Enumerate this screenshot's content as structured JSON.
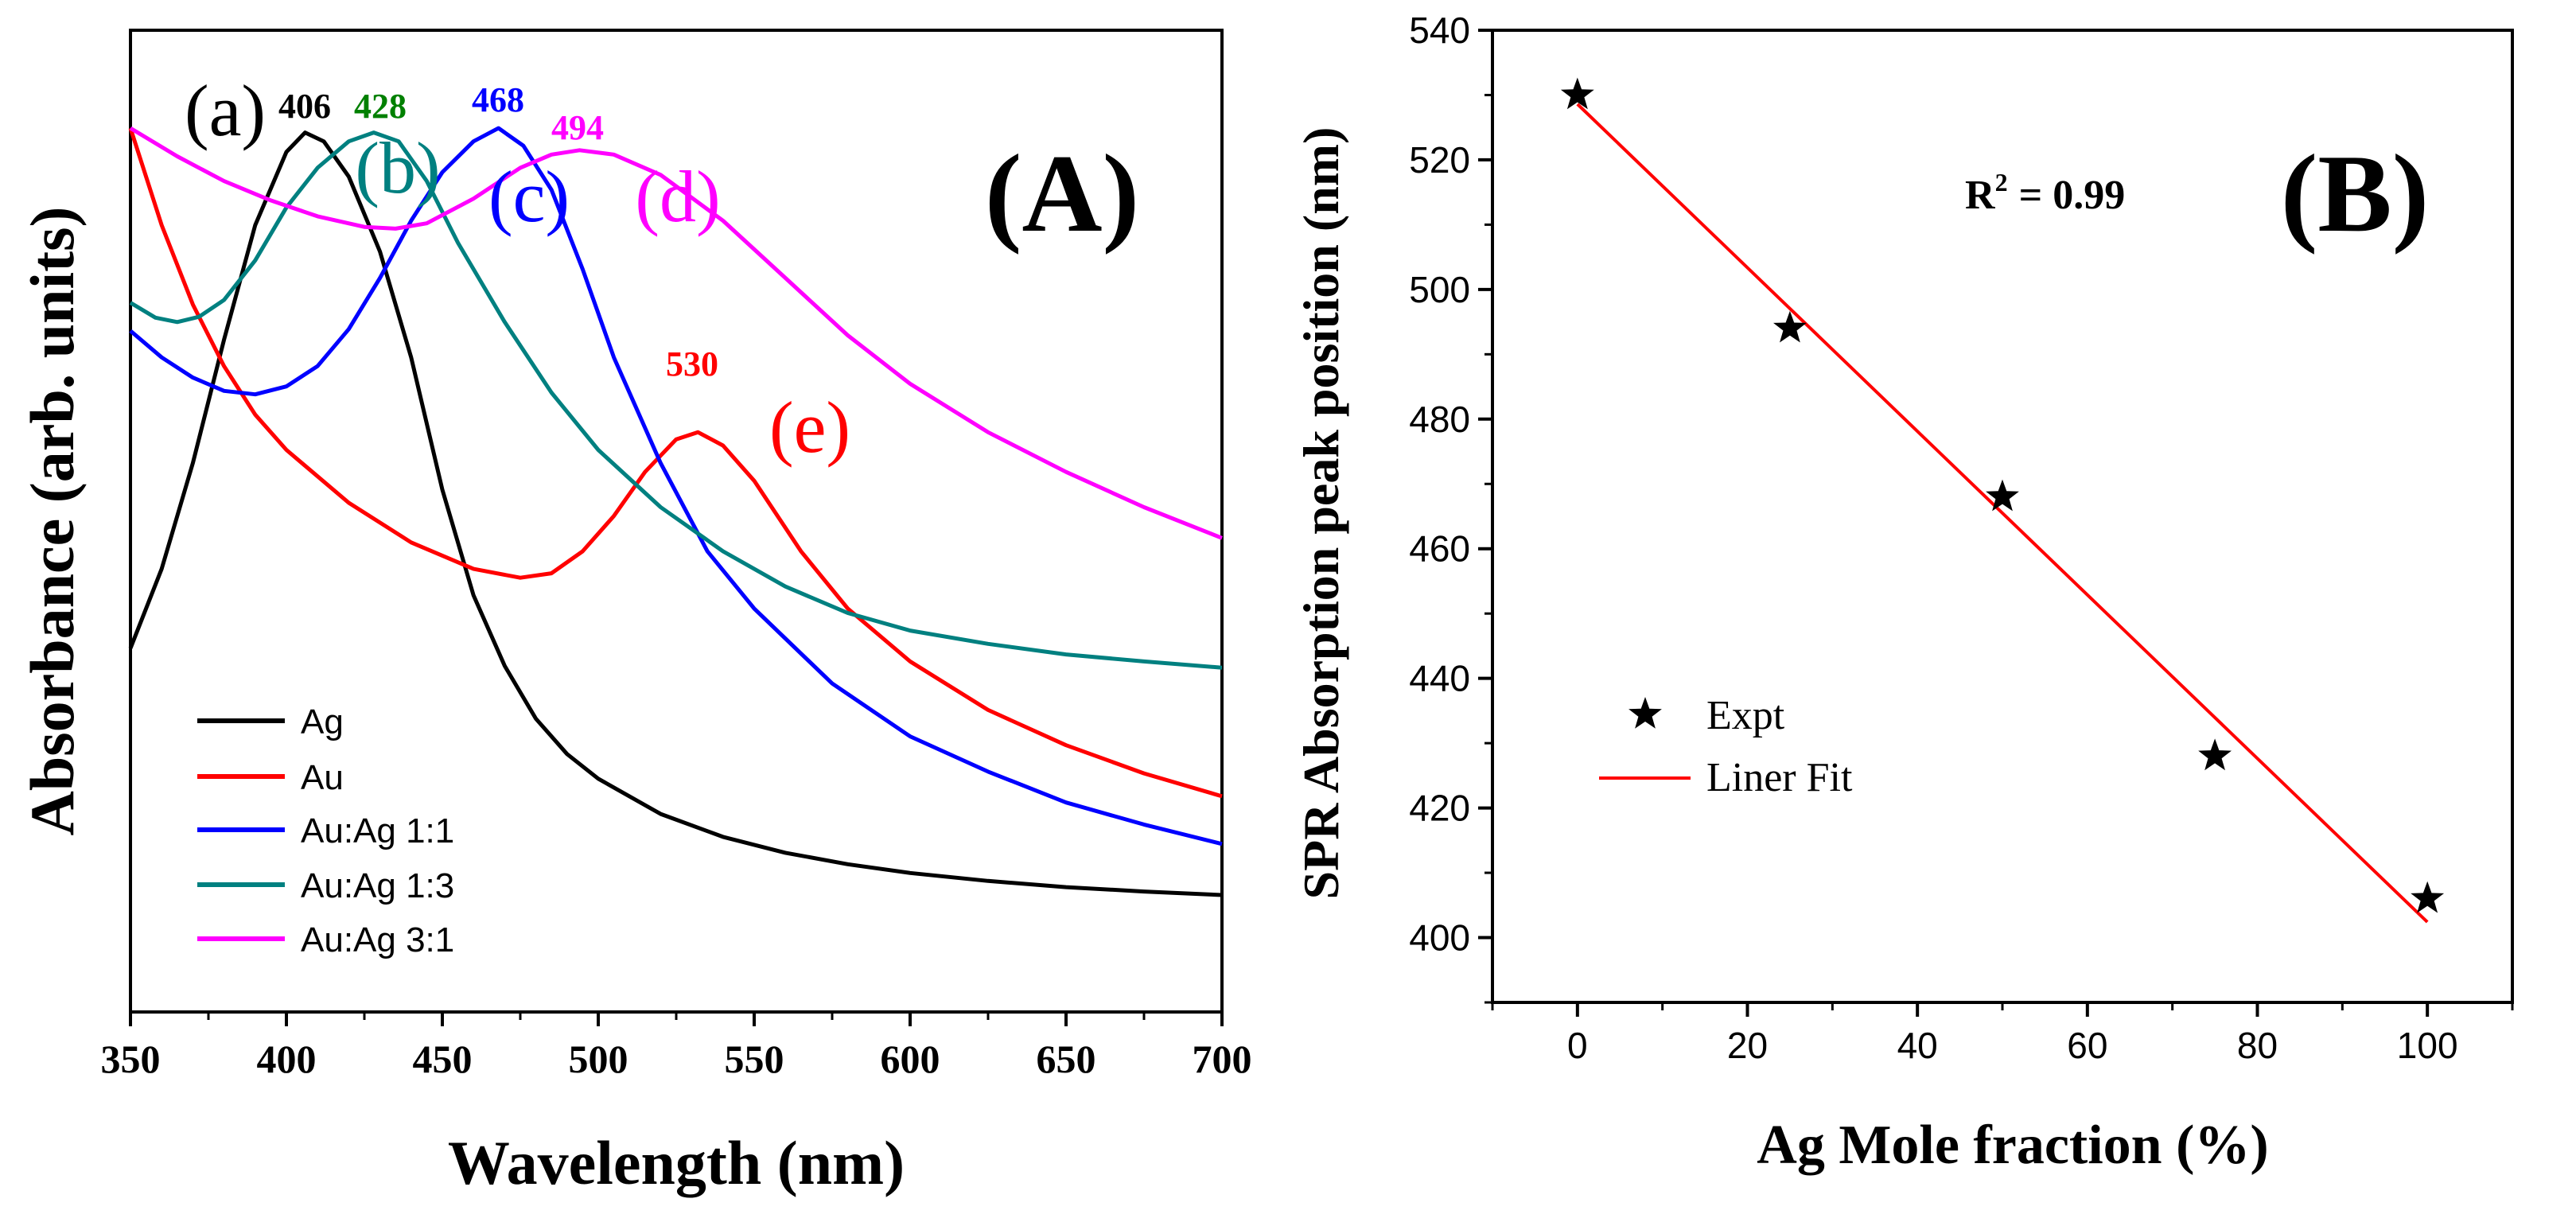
{
  "chart_data": [
    {
      "id": "A",
      "type": "line",
      "panel_label": "(A)",
      "xlabel": "Wavelength (nm)",
      "ylabel": "Absorbance (arb. units)",
      "xlim": [
        350,
        700
      ],
      "ylim": [
        0,
        1
      ],
      "x_ticks": [
        350,
        400,
        450,
        500,
        550,
        600,
        650,
        700
      ],
      "series": [
        {
          "name": "Ag",
          "color": "#000000",
          "curve_label": "(a)",
          "peak_label": "406",
          "peak_x": 406,
          "points": [
            [
              350,
              0.4
            ],
            [
              360,
              0.49
            ],
            [
              370,
              0.61
            ],
            [
              380,
              0.75
            ],
            [
              390,
              0.88
            ],
            [
              400,
              0.963
            ],
            [
              406,
              0.985
            ],
            [
              412,
              0.975
            ],
            [
              420,
              0.935
            ],
            [
              430,
              0.85
            ],
            [
              440,
              0.73
            ],
            [
              450,
              0.58
            ],
            [
              460,
              0.46
            ],
            [
              470,
              0.38
            ],
            [
              480,
              0.32
            ],
            [
              490,
              0.28
            ],
            [
              500,
              0.252
            ],
            [
              520,
              0.212
            ],
            [
              540,
              0.186
            ],
            [
              560,
              0.168
            ],
            [
              580,
              0.155
            ],
            [
              600,
              0.145
            ],
            [
              625,
              0.136
            ],
            [
              650,
              0.129
            ],
            [
              675,
              0.124
            ],
            [
              700,
              0.12
            ]
          ]
        },
        {
          "name": "Au",
          "color": "#ff0000",
          "curve_label": "(e)",
          "peak_label": "530",
          "peak_x": 530,
          "points": [
            [
              350,
              0.99
            ],
            [
              360,
              0.88
            ],
            [
              370,
              0.79
            ],
            [
              380,
              0.72
            ],
            [
              390,
              0.665
            ],
            [
              400,
              0.625
            ],
            [
              420,
              0.565
            ],
            [
              440,
              0.52
            ],
            [
              460,
              0.49
            ],
            [
              475,
              0.48
            ],
            [
              485,
              0.485
            ],
            [
              495,
              0.51
            ],
            [
              505,
              0.55
            ],
            [
              515,
              0.6
            ],
            [
              525,
              0.637
            ],
            [
              532,
              0.645
            ],
            [
              540,
              0.63
            ],
            [
              550,
              0.59
            ],
            [
              565,
              0.51
            ],
            [
              580,
              0.445
            ],
            [
              600,
              0.385
            ],
            [
              625,
              0.33
            ],
            [
              650,
              0.29
            ],
            [
              675,
              0.258
            ],
            [
              700,
              0.232
            ]
          ]
        },
        {
          "name": "Au:Ag 1:1",
          "color": "#0000ff",
          "curve_label": "(c)",
          "peak_label": "468",
          "peak_x": 468,
          "points": [
            [
              350,
              0.76
            ],
            [
              360,
              0.73
            ],
            [
              370,
              0.707
            ],
            [
              380,
              0.692
            ],
            [
              390,
              0.688
            ],
            [
              400,
              0.697
            ],
            [
              410,
              0.72
            ],
            [
              420,
              0.762
            ],
            [
              430,
              0.82
            ],
            [
              440,
              0.885
            ],
            [
              450,
              0.94
            ],
            [
              460,
              0.975
            ],
            [
              468,
              0.99
            ],
            [
              476,
              0.97
            ],
            [
              485,
              0.92
            ],
            [
              495,
              0.83
            ],
            [
              505,
              0.73
            ],
            [
              520,
              0.61
            ],
            [
              535,
              0.51
            ],
            [
              550,
              0.445
            ],
            [
              575,
              0.36
            ],
            [
              600,
              0.3
            ],
            [
              625,
              0.26
            ],
            [
              650,
              0.225
            ],
            [
              675,
              0.2
            ],
            [
              700,
              0.178
            ]
          ]
        },
        {
          "name": "Au:Ag 1:3",
          "color": "#008080",
          "curve_label": "(b)",
          "peak_label": "428",
          "peak_x": 428,
          "points": [
            [
              350,
              0.792
            ],
            [
              358,
              0.775
            ],
            [
              365,
              0.77
            ],
            [
              372,
              0.776
            ],
            [
              380,
              0.795
            ],
            [
              390,
              0.84
            ],
            [
              400,
              0.9
            ],
            [
              410,
              0.945
            ],
            [
              420,
              0.975
            ],
            [
              428,
              0.985
            ],
            [
              436,
              0.975
            ],
            [
              445,
              0.93
            ],
            [
              455,
              0.86
            ],
            [
              470,
              0.77
            ],
            [
              485,
              0.69
            ],
            [
              500,
              0.625
            ],
            [
              520,
              0.56
            ],
            [
              540,
              0.51
            ],
            [
              560,
              0.47
            ],
            [
              580,
              0.44
            ],
            [
              600,
              0.42
            ],
            [
              625,
              0.405
            ],
            [
              650,
              0.393
            ],
            [
              675,
              0.385
            ],
            [
              700,
              0.378
            ]
          ]
        },
        {
          "name": "Au:Ag 3:1",
          "color": "#ff00ff",
          "curve_label": "(d)",
          "peak_label": "494",
          "peak_x": 494,
          "points": [
            [
              350,
              0.99
            ],
            [
              365,
              0.958
            ],
            [
              380,
              0.93
            ],
            [
              395,
              0.908
            ],
            [
              410,
              0.89
            ],
            [
              425,
              0.878
            ],
            [
              435,
              0.876
            ],
            [
              445,
              0.882
            ],
            [
              460,
              0.91
            ],
            [
              475,
              0.945
            ],
            [
              485,
              0.96
            ],
            [
              494,
              0.965
            ],
            [
              505,
              0.96
            ],
            [
              520,
              0.937
            ],
            [
              540,
              0.885
            ],
            [
              560,
              0.82
            ],
            [
              580,
              0.755
            ],
            [
              600,
              0.7
            ],
            [
              625,
              0.645
            ],
            [
              650,
              0.6
            ],
            [
              675,
              0.56
            ],
            [
              700,
              0.525
            ]
          ]
        }
      ]
    },
    {
      "id": "B",
      "type": "scatter",
      "panel_label": "(B)",
      "xlabel": "Ag Mole fraction (%)",
      "ylabel": "SPR Absorption peak position (nm)",
      "xlim": [
        -10,
        110
      ],
      "ylim": [
        390,
        540
      ],
      "x_ticks": [
        0,
        20,
        40,
        60,
        80,
        100
      ],
      "y_ticks": [
        400,
        420,
        440,
        460,
        480,
        500,
        520,
        540
      ],
      "annotation": "= 0.99",
      "annotation_symbol": "R",
      "annotation_exp": "2",
      "series": [
        {
          "name": "Expt",
          "color": "#000000",
          "x": [
            0,
            25,
            50,
            75,
            100
          ],
          "y": [
            530,
            494,
            468,
            428,
            406
          ]
        },
        {
          "name": "Liner Fit",
          "color": "#ff0000",
          "x": [
            0,
            100
          ],
          "y": [
            528.6,
            402.4
          ]
        }
      ]
    }
  ]
}
